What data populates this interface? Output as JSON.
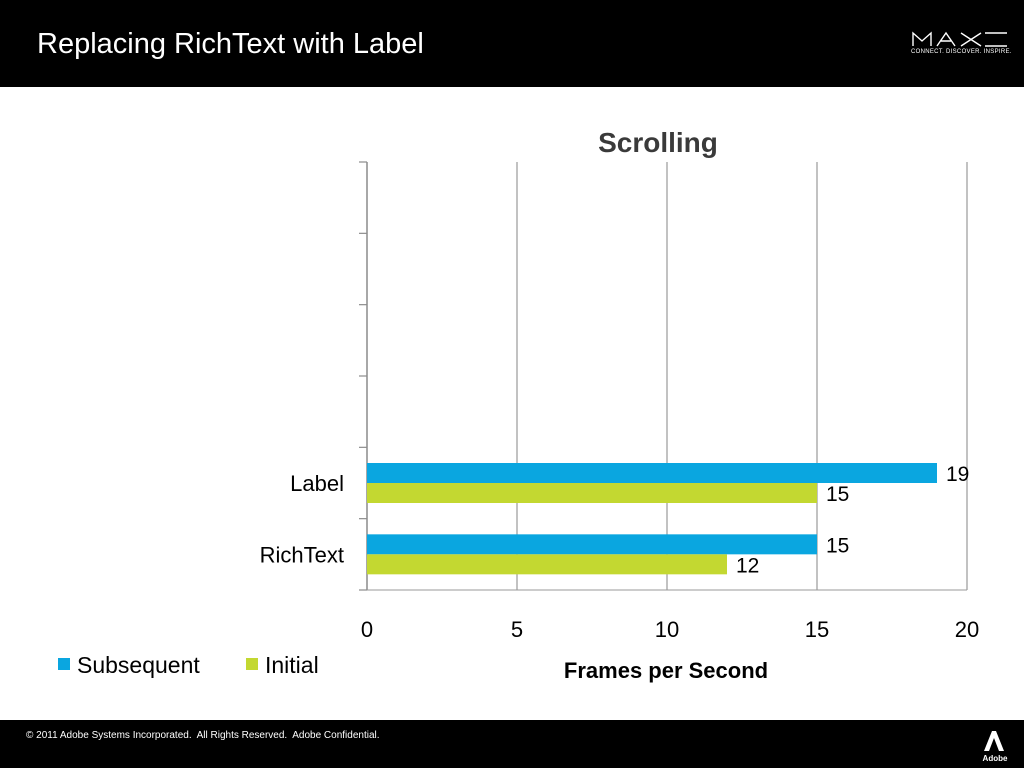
{
  "slide": {
    "title": "Replacing RichText with Label",
    "brand": {
      "logo_text": "MAX",
      "tagline": "CONNECT. DISCOVER. INSPIRE."
    }
  },
  "chart_data": {
    "type": "bar",
    "orientation": "horizontal",
    "title": "Scrolling",
    "xlabel": "Frames per Second",
    "ylabel": "",
    "categories": [
      "RichText",
      "Label"
    ],
    "series": [
      {
        "name": "Subsequent",
        "values": [
          15,
          19
        ],
        "color": "#0aa6e0"
      },
      {
        "name": "Initial",
        "values": [
          12,
          15
        ],
        "color": "#c3d831"
      }
    ],
    "xlim": [
      0,
      20
    ],
    "x_ticks": [
      "0",
      "5",
      "10",
      "15",
      "20"
    ],
    "grid": "vertical",
    "legend_position": "bottom-left",
    "data_labels": true
  },
  "footer": {
    "copyright": "© 2011 Adobe Systems Incorporated.  All Rights Reserved.  Adobe Confidential.",
    "logo_text": "Adobe"
  }
}
